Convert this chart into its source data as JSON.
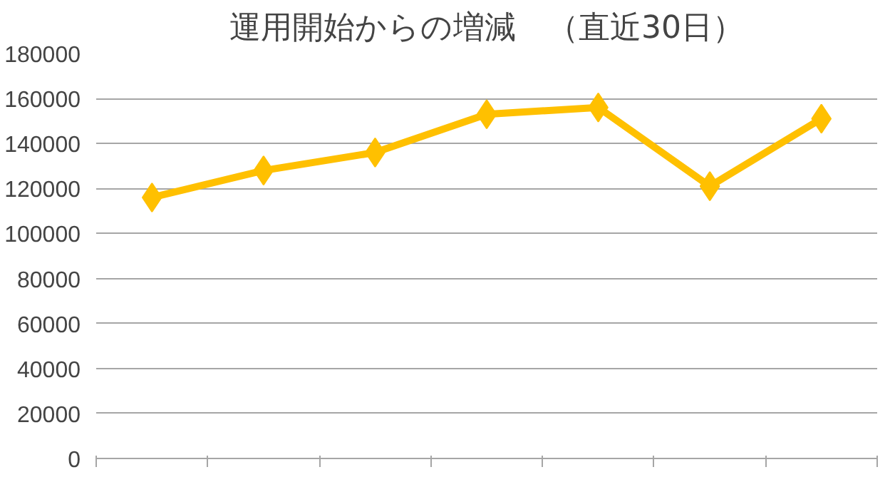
{
  "chart_data": {
    "type": "line",
    "title": "運用開始からの増減　（直近30日）",
    "categories": [
      null,
      null,
      null,
      null,
      null,
      null,
      null
    ],
    "series": [
      {
        "color": "#ffc000",
        "values": [
          116000,
          128000,
          136000,
          153000,
          156000,
          121000,
          151000
        ]
      }
    ],
    "ylim": [
      0,
      180000
    ],
    "yticks": [
      0,
      20000,
      40000,
      60000,
      80000,
      100000,
      120000,
      140000,
      160000,
      180000
    ],
    "grid": "y",
    "marker": "diamond",
    "line_style": "solid",
    "tick_labels": "y"
  }
}
